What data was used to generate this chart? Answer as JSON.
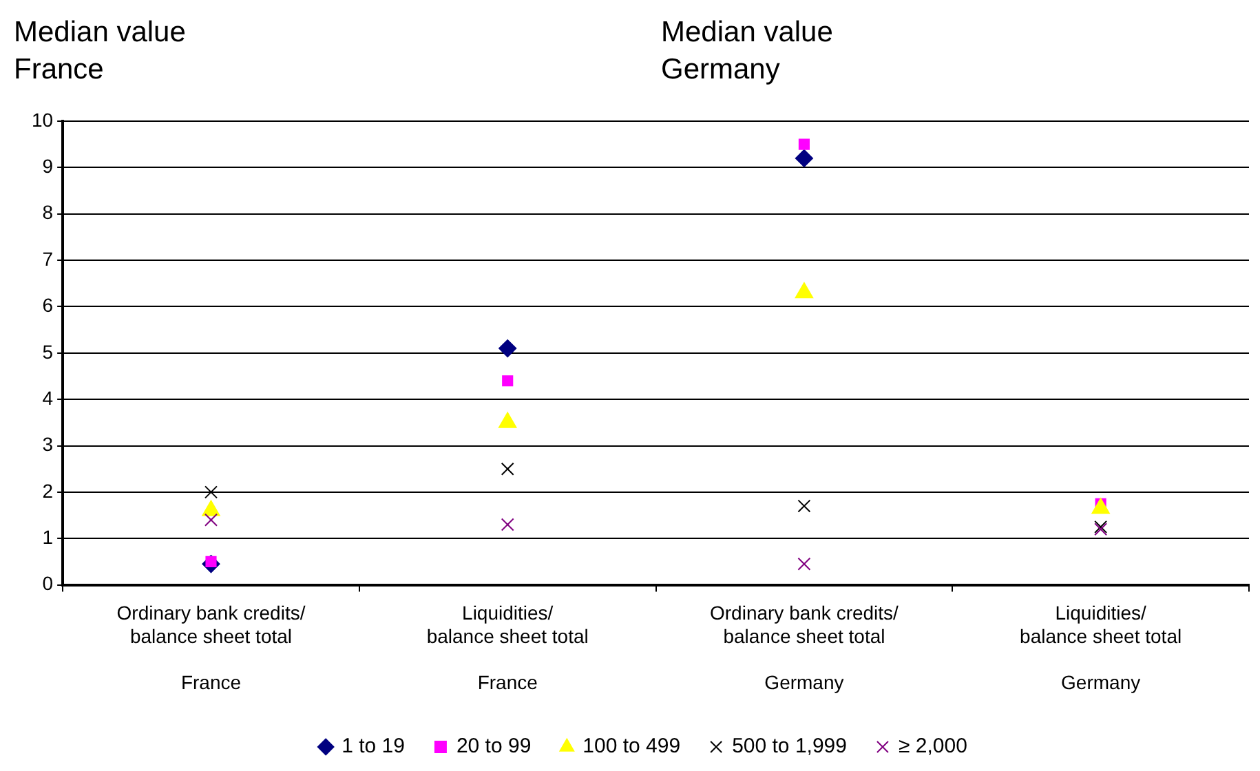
{
  "chart_data": {
    "type": "scatter",
    "annotations": [
      "Median value\nFrance",
      "Median value\nGermany"
    ],
    "categories": [
      "Ordinary bank credits/\nbalance sheet total\n\nFrance",
      "Liquidities/\nbalance sheet total\n\nFrance",
      "Ordinary bank credits/\nbalance sheet total\n\nGermany",
      "Liquidities/\nbalance sheet total\n\nGermany"
    ],
    "series": [
      {
        "name": "1 to 19",
        "color": "#000080",
        "marker": "diamond",
        "values": [
          0.45,
          5.1,
          9.2,
          null
        ]
      },
      {
        "name": "20 to 99",
        "color": "#ff00ff",
        "marker": "square",
        "values": [
          0.5,
          4.4,
          9.5,
          1.75
        ]
      },
      {
        "name": "100 to 499",
        "color": "#ffff00",
        "marker": "triangle",
        "values": [
          1.6,
          3.5,
          6.3,
          1.65
        ]
      },
      {
        "name": "500 to 1,999",
        "color": "#000000",
        "marker": "cross",
        "values": [
          2.0,
          2.5,
          1.7,
          1.25
        ]
      },
      {
        "name": "≥ 2,000",
        "color": "#800080",
        "marker": "cross",
        "values": [
          1.4,
          1.3,
          0.45,
          1.2
        ]
      }
    ],
    "ylim": [
      0,
      10
    ],
    "yticks": [
      0,
      1,
      2,
      3,
      4,
      5,
      6,
      7,
      8,
      9,
      10
    ],
    "grid": "y",
    "legend": "bottom"
  }
}
